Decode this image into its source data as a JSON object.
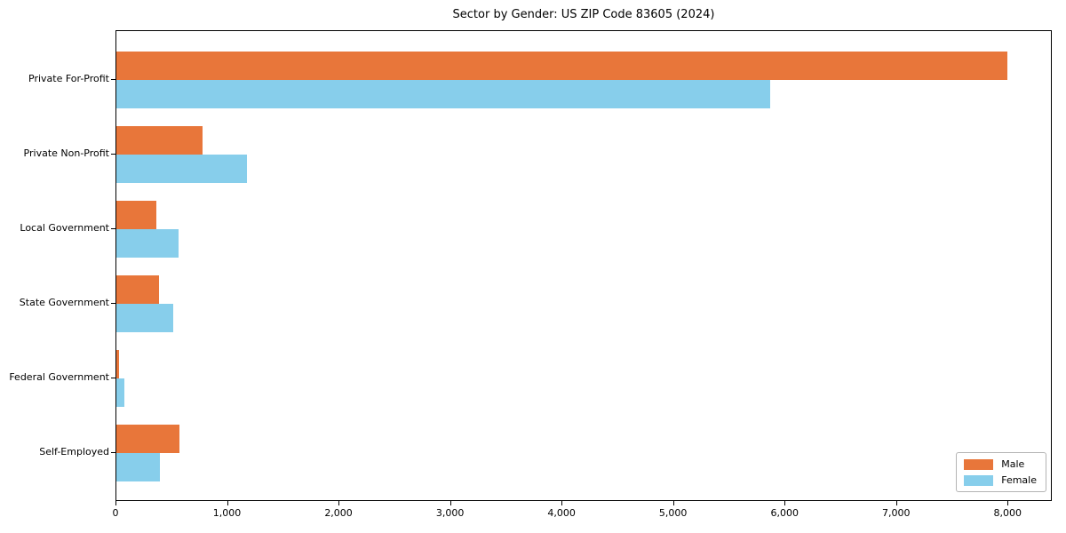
{
  "chart_data": {
    "type": "bar",
    "orientation": "horizontal",
    "title": "Sector by Gender: US ZIP Code 83605 (2024)",
    "categories": [
      "Private For-Profit",
      "Private Non-Profit",
      "Local Government",
      "State Government",
      "Federal Government",
      "Self-Employed"
    ],
    "series": [
      {
        "name": "Male",
        "color": "#e8763a",
        "values": [
          7990,
          770,
          360,
          380,
          25,
          565
        ]
      },
      {
        "name": "Female",
        "color": "#87ceeb",
        "values": [
          5860,
          1170,
          560,
          510,
          70,
          390
        ]
      }
    ],
    "xlabel": "",
    "ylabel": "",
    "xlim": [
      0,
      8380
    ],
    "xticks": [
      0,
      1000,
      2000,
      3000,
      4000,
      5000,
      6000,
      7000,
      8000
    ],
    "xtick_labels": [
      "0",
      "1,000",
      "2,000",
      "3,000",
      "4,000",
      "5,000",
      "6,000",
      "7,000",
      "8,000"
    ],
    "grid": false,
    "legend_position": "lower right"
  }
}
